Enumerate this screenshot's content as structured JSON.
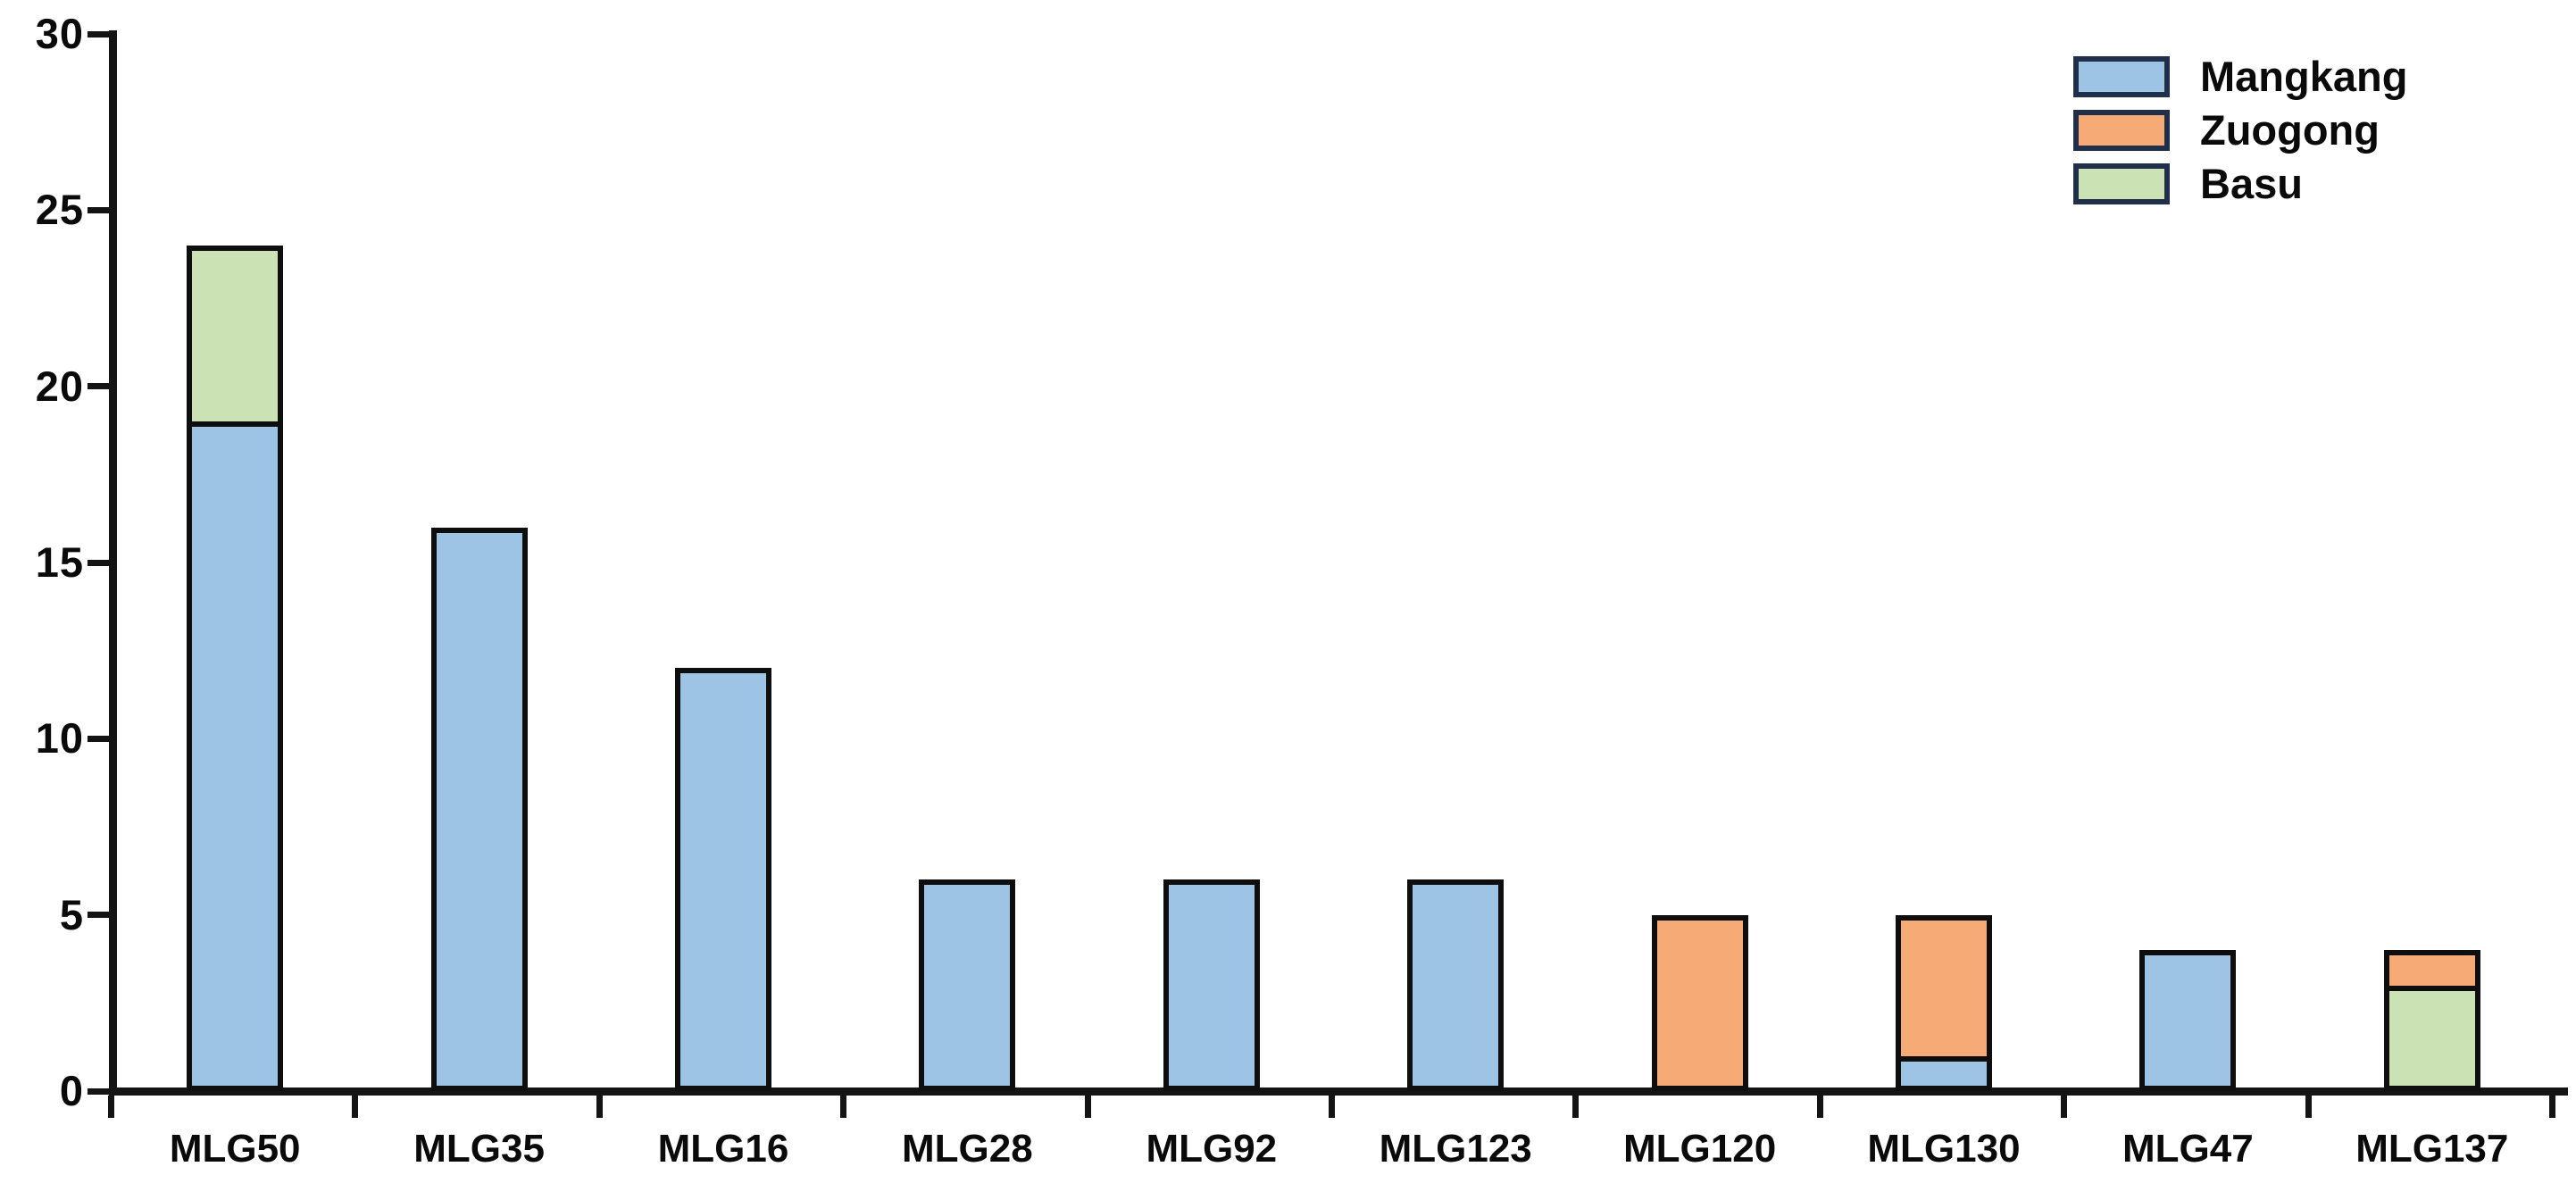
{
  "chart_data": {
    "type": "bar",
    "stacked": true,
    "title": "",
    "xlabel": "",
    "ylabel": "",
    "grid": false,
    "background": "#ffffff",
    "categories": [
      "MLG50",
      "MLG35",
      "MLG16",
      "MLG28",
      "MLG92",
      "MLG123",
      "MLG120",
      "MLG130",
      "MLG47",
      "MLG137"
    ],
    "series": [
      {
        "name": "Mangkang",
        "color": "#9dc3e5",
        "values": [
          19,
          16,
          12,
          6,
          6,
          6,
          0,
          1,
          4,
          0
        ]
      },
      {
        "name": "Zuogong",
        "color": "#f6aa76",
        "values": [
          0,
          0,
          0,
          0,
          0,
          0,
          5,
          4,
          0,
          1
        ]
      },
      {
        "name": "Basu",
        "color": "#cbe3b4",
        "values": [
          5,
          0,
          0,
          0,
          0,
          0,
          0,
          0,
          0,
          3
        ]
      }
    ],
    "bars": [
      {
        "category": "MLG50",
        "segments": [
          {
            "series": "Mangkang",
            "value": 19
          },
          {
            "series": "Basu",
            "value": 5
          }
        ],
        "total": 24
      },
      {
        "category": "MLG35",
        "segments": [
          {
            "series": "Mangkang",
            "value": 16
          }
        ],
        "total": 16
      },
      {
        "category": "MLG16",
        "segments": [
          {
            "series": "Mangkang",
            "value": 12
          }
        ],
        "total": 12
      },
      {
        "category": "MLG28",
        "segments": [
          {
            "series": "Mangkang",
            "value": 6
          }
        ],
        "total": 6
      },
      {
        "category": "MLG92",
        "segments": [
          {
            "series": "Mangkang",
            "value": 6
          }
        ],
        "total": 6
      },
      {
        "category": "MLG123",
        "segments": [
          {
            "series": "Mangkang",
            "value": 6
          }
        ],
        "total": 6
      },
      {
        "category": "MLG120",
        "segments": [
          {
            "series": "Zuogong",
            "value": 5
          }
        ],
        "total": 5
      },
      {
        "category": "MLG130",
        "segments": [
          {
            "series": "Mangkang",
            "value": 1
          },
          {
            "series": "Zuogong",
            "value": 4
          }
        ],
        "total": 5
      },
      {
        "category": "MLG47",
        "segments": [
          {
            "series": "Mangkang",
            "value": 4
          }
        ],
        "total": 4
      },
      {
        "category": "MLG137",
        "segments": [
          {
            "series": "Basu",
            "value": 3
          },
          {
            "series": "Zuogong",
            "value": 1
          }
        ],
        "total": 4
      }
    ],
    "y_axis": {
      "min": 0,
      "max": 30,
      "ticks": [
        0,
        5,
        10,
        15,
        20,
        25,
        30
      ]
    },
    "legend": {
      "position": "top-right",
      "items": [
        {
          "label": "Mangkang",
          "color": "#9dc3e5"
        },
        {
          "label": "Zuogong",
          "color": "#f6aa76"
        },
        {
          "label": "Basu",
          "color": "#cbe3b4"
        }
      ]
    },
    "colors": {
      "axis": "#141414",
      "bar_border": "#0e0e0e",
      "legend_border": "#20304a",
      "text": "#0a0a0a"
    }
  }
}
